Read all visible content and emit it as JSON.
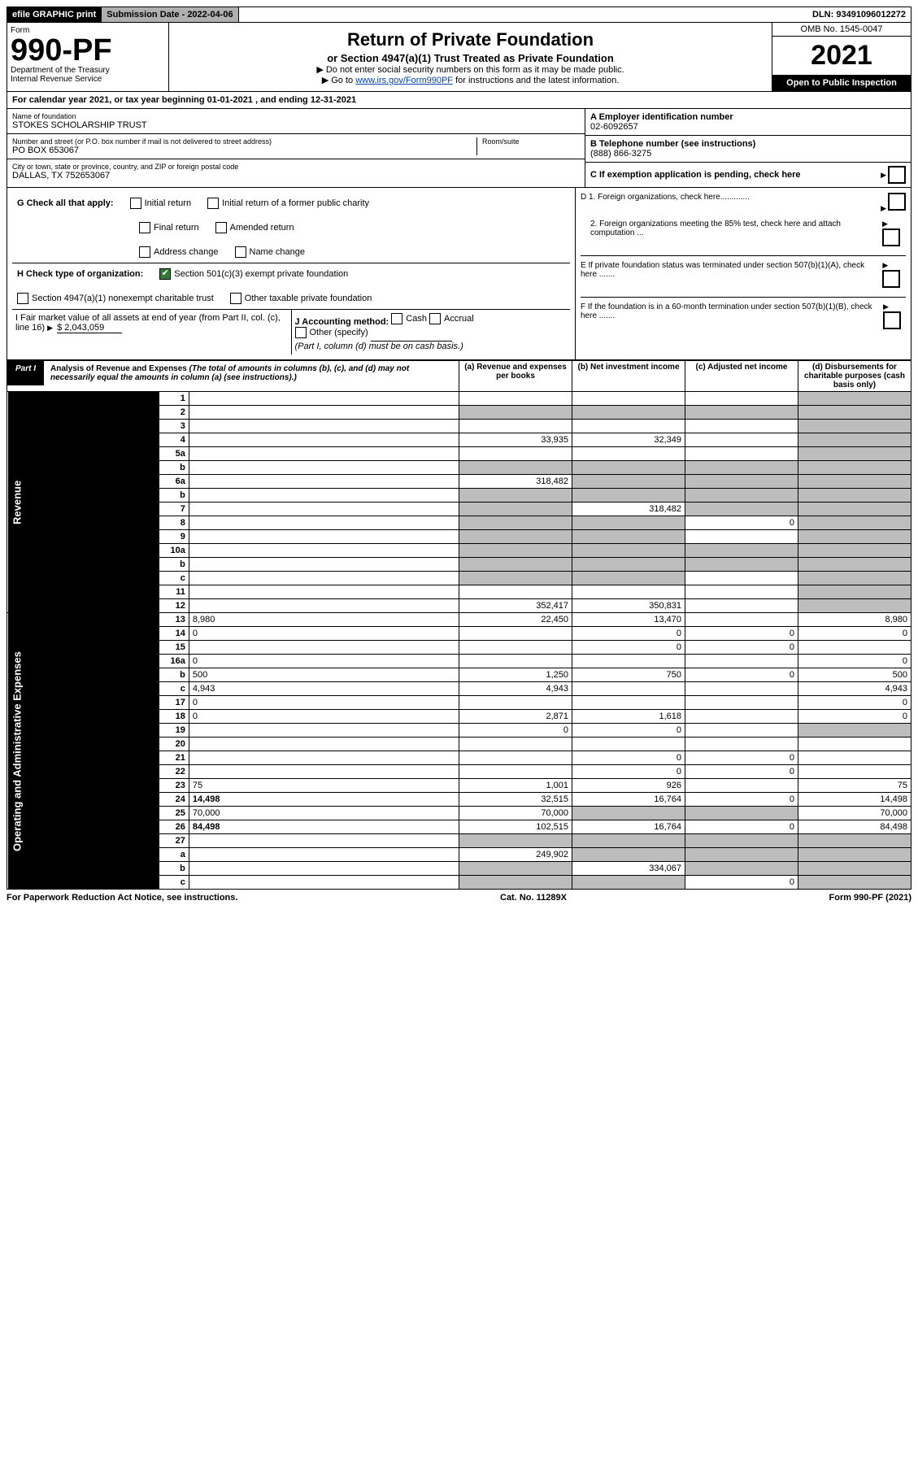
{
  "topbar": {
    "efile": "efile GRAPHIC print",
    "submission_label": "Submission Date - 2022-04-06",
    "dln": "DLN: 93491096012272"
  },
  "header": {
    "form_word": "Form",
    "form_number": "990-PF",
    "dept": "Department of the Treasury",
    "irs": "Internal Revenue Service",
    "title": "Return of Private Foundation",
    "subtitle": "or Section 4947(a)(1) Trust Treated as Private Foundation",
    "warn1": "▶ Do not enter social security numbers on this form as it may be made public.",
    "warn2_pre": "▶ Go to ",
    "warn2_link": "www.irs.gov/Form990PF",
    "warn2_post": " for instructions and the latest information.",
    "omb": "OMB No. 1545-0047",
    "year": "2021",
    "open": "Open to Public Inspection"
  },
  "calendar": {
    "text_pre": "For calendar year 2021, or tax year beginning ",
    "begin": "01-01-2021",
    "mid": " , and ending ",
    "end": "12-31-2021"
  },
  "id": {
    "name_lbl": "Name of foundation",
    "name": "STOKES SCHOLARSHIP TRUST",
    "addr_lbl": "Number and street (or P.O. box number if mail is not delivered to street address)",
    "room_lbl": "Room/suite",
    "addr": "PO BOX 653067",
    "city_lbl": "City or town, state or province, country, and ZIP or foreign postal code",
    "city": "DALLAS, TX  752653067",
    "ein_lbl": "A Employer identification number",
    "ein": "02-6092657",
    "phone_lbl": "B Telephone number (see instructions)",
    "phone": "(888) 866-3275",
    "c_lbl": "C If exemption application is pending, check here",
    "d1": "D 1. Foreign organizations, check here.............",
    "d2": "2. Foreign organizations meeting the 85% test, check here and attach computation ...",
    "e_lbl": "E If private foundation status was terminated under section 507(b)(1)(A), check here .......",
    "f_lbl": "F If the foundation is in a 60-month termination under section 507(b)(1)(B), check here ......."
  },
  "g": {
    "label": "G Check all that apply:",
    "opts": [
      "Initial return",
      "Final return",
      "Address change",
      "Initial return of a former public charity",
      "Amended return",
      "Name change"
    ]
  },
  "h": {
    "label": "H Check type of organization:",
    "opt1": "Section 501(c)(3) exempt private foundation",
    "opt2": "Section 4947(a)(1) nonexempt charitable trust",
    "opt3": "Other taxable private foundation"
  },
  "i": {
    "label": "I Fair market value of all assets at end of year (from Part II, col. (c), line 16)",
    "val": "$  2,043,059"
  },
  "j": {
    "label": "J Accounting method:",
    "cash": "Cash",
    "accrual": "Accrual",
    "other": "Other (specify)",
    "note": "(Part I, column (d) must be on cash basis.)"
  },
  "part1": {
    "tab": "Part I",
    "title": "Analysis of Revenue and Expenses",
    "note": "(The total of amounts in columns (b), (c), and (d) may not necessarily equal the amounts in column (a) (see instructions).)",
    "cols": {
      "a": "(a) Revenue and expenses per books",
      "b": "(b) Net investment income",
      "c": "(c) Adjusted net income",
      "d": "(d) Disbursements for charitable purposes (cash basis only)"
    }
  },
  "side": {
    "rev": "Revenue",
    "exp": "Operating and Administrative Expenses"
  },
  "rows": [
    {
      "n": "1",
      "d": "",
      "a": "",
      "b": "",
      "c": "",
      "shade": [
        "d"
      ]
    },
    {
      "n": "2",
      "d": "",
      "a": "",
      "b": "",
      "c": "",
      "shade": [
        "a",
        "b",
        "c",
        "d"
      ],
      "bold_not": true
    },
    {
      "n": "3",
      "d": "",
      "a": "",
      "b": "",
      "c": "",
      "shade": [
        "d"
      ]
    },
    {
      "n": "4",
      "d": "",
      "a": "33,935",
      "b": "32,349",
      "c": "",
      "shade": [
        "d"
      ]
    },
    {
      "n": "5a",
      "d": "",
      "a": "",
      "b": "",
      "c": "",
      "shade": [
        "d"
      ]
    },
    {
      "n": "b",
      "d": "",
      "a": "",
      "b": "",
      "c": "",
      "shade": [
        "a",
        "b",
        "c",
        "d"
      ]
    },
    {
      "n": "6a",
      "d": "",
      "a": "318,482",
      "b": "",
      "c": "",
      "shade": [
        "b",
        "c",
        "d"
      ]
    },
    {
      "n": "b",
      "d": "",
      "a": "",
      "b": "",
      "c": "",
      "shade": [
        "a",
        "b",
        "c",
        "d"
      ]
    },
    {
      "n": "7",
      "d": "",
      "a": "",
      "b": "318,482",
      "c": "",
      "shade": [
        "a",
        "c",
        "d"
      ]
    },
    {
      "n": "8",
      "d": "",
      "a": "",
      "b": "",
      "c": "0",
      "shade": [
        "a",
        "b",
        "d"
      ]
    },
    {
      "n": "9",
      "d": "",
      "a": "",
      "b": "",
      "c": "",
      "shade": [
        "a",
        "b",
        "d"
      ]
    },
    {
      "n": "10a",
      "d": "",
      "a": "",
      "b": "",
      "c": "",
      "shade": [
        "a",
        "b",
        "c",
        "d"
      ]
    },
    {
      "n": "b",
      "d": "",
      "a": "",
      "b": "",
      "c": "",
      "shade": [
        "a",
        "b",
        "c",
        "d"
      ]
    },
    {
      "n": "c",
      "d": "",
      "a": "",
      "b": "",
      "c": "",
      "shade": [
        "a",
        "b",
        "d"
      ]
    },
    {
      "n": "11",
      "d": "",
      "a": "",
      "b": "",
      "c": "",
      "shade": [
        "d"
      ]
    },
    {
      "n": "12",
      "d": "",
      "a": "352,417",
      "b": "350,831",
      "c": "",
      "shade": [
        "d"
      ],
      "bold": true
    },
    {
      "n": "13",
      "d": "8,980",
      "a": "22,450",
      "b": "13,470",
      "c": ""
    },
    {
      "n": "14",
      "d": "0",
      "a": "",
      "b": "0",
      "c": "0"
    },
    {
      "n": "15",
      "d": "",
      "a": "",
      "b": "0",
      "c": "0"
    },
    {
      "n": "16a",
      "d": "0",
      "a": "",
      "b": "",
      "c": ""
    },
    {
      "n": "b",
      "d": "500",
      "a": "1,250",
      "b": "750",
      "c": "0"
    },
    {
      "n": "c",
      "d": "4,943",
      "a": "4,943",
      "b": "",
      "c": ""
    },
    {
      "n": "17",
      "d": "0",
      "a": "",
      "b": "",
      "c": ""
    },
    {
      "n": "18",
      "d": "0",
      "a": "2,871",
      "b": "1,618",
      "c": ""
    },
    {
      "n": "19",
      "d": "",
      "a": "0",
      "b": "0",
      "c": "",
      "shade": [
        "d"
      ]
    },
    {
      "n": "20",
      "d": "",
      "a": "",
      "b": "",
      "c": ""
    },
    {
      "n": "21",
      "d": "",
      "a": "",
      "b": "0",
      "c": "0"
    },
    {
      "n": "22",
      "d": "",
      "a": "",
      "b": "0",
      "c": "0"
    },
    {
      "n": "23",
      "d": "75",
      "a": "1,001",
      "b": "926",
      "c": ""
    },
    {
      "n": "24",
      "d": "14,498",
      "a": "32,515",
      "b": "16,764",
      "c": "0",
      "bold": true
    },
    {
      "n": "25",
      "d": "70,000",
      "a": "70,000",
      "b": "",
      "c": "",
      "shade": [
        "b",
        "c"
      ]
    },
    {
      "n": "26",
      "d": "84,498",
      "a": "102,515",
      "b": "16,764",
      "c": "0",
      "bold": true
    },
    {
      "n": "27",
      "d": "",
      "a": "",
      "b": "",
      "c": "",
      "shade": [
        "a",
        "b",
        "c",
        "d"
      ]
    },
    {
      "n": "a",
      "d": "",
      "a": "249,902",
      "b": "",
      "c": "",
      "shade": [
        "b",
        "c",
        "d"
      ],
      "bold": true
    },
    {
      "n": "b",
      "d": "",
      "a": "",
      "b": "334,067",
      "c": "",
      "shade": [
        "a",
        "c",
        "d"
      ],
      "bold": true
    },
    {
      "n": "c",
      "d": "",
      "a": "",
      "b": "",
      "c": "0",
      "shade": [
        "a",
        "b",
        "d"
      ],
      "bold": true
    }
  ],
  "footer": {
    "left": "For Paperwork Reduction Act Notice, see instructions.",
    "mid": "Cat. No. 11289X",
    "right": "Form 990-PF (2021)"
  },
  "colors": {
    "shade": "#bdbdbd",
    "link": "#0645ad",
    "check": "#2e7d32"
  }
}
